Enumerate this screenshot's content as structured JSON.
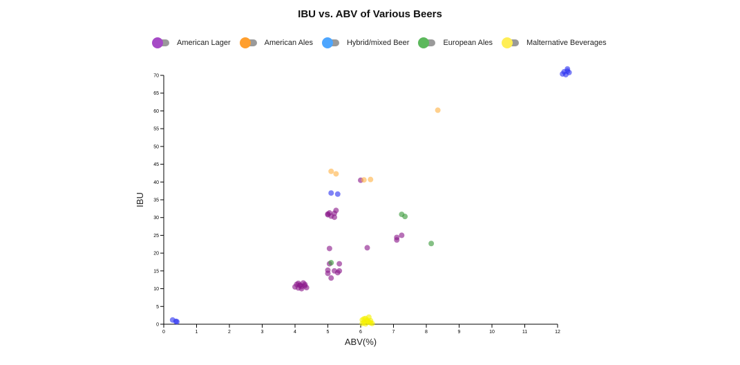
{
  "chart_data": {
    "type": "scatter",
    "title": "IBU vs. ABV of Various Beers",
    "xlabel": "ABV(%)",
    "ylabel": "IBU",
    "xlim": [
      0,
      12
    ],
    "ylim": [
      0,
      70
    ],
    "xticks": [
      0,
      1,
      2,
      3,
      4,
      5,
      6,
      7,
      8,
      9,
      10,
      11,
      12
    ],
    "yticks": [
      0,
      5,
      10,
      15,
      20,
      25,
      30,
      35,
      40,
      45,
      50,
      55,
      60,
      65,
      70
    ],
    "grid": false,
    "legend": "top",
    "series": [
      {
        "name": "American Lager",
        "color": "#a64ac6",
        "point_color": "#8b1a8b",
        "points": [
          [
            4.0,
            10.5
          ],
          [
            4.05,
            11.2
          ],
          [
            4.1,
            10.2
          ],
          [
            4.15,
            11.0
          ],
          [
            4.2,
            10.6
          ],
          [
            4.25,
            11.6
          ],
          [
            4.3,
            10.8
          ],
          [
            4.35,
            10.3
          ],
          [
            4.1,
            11.5
          ],
          [
            4.2,
            10.0
          ],
          [
            4.15,
            10.9
          ],
          [
            4.3,
            11.2
          ],
          [
            5.0,
            15.2
          ],
          [
            5.0,
            14.3
          ],
          [
            5.1,
            13.0
          ],
          [
            5.2,
            15.0
          ],
          [
            5.3,
            14.5
          ],
          [
            5.35,
            15.0
          ],
          [
            5.05,
            17.0
          ],
          [
            5.35,
            17.0
          ],
          [
            5.05,
            21.3
          ],
          [
            6.2,
            21.5
          ],
          [
            7.1,
            24.4
          ],
          [
            7.1,
            23.7
          ],
          [
            7.25,
            25.0
          ],
          [
            5.0,
            30.8
          ],
          [
            5.05,
            31.3
          ],
          [
            5.1,
            30.4
          ],
          [
            5.2,
            31.2
          ],
          [
            5.25,
            32.0
          ],
          [
            5.2,
            30.1
          ],
          [
            5.0,
            31.0
          ],
          [
            6.0,
            40.5
          ]
        ]
      },
      {
        "name": "American Ales",
        "color": "#ff9f2e",
        "point_color": "#ffb347",
        "points": [
          [
            5.1,
            43.0
          ],
          [
            5.25,
            42.3
          ],
          [
            6.1,
            40.6
          ],
          [
            6.3,
            40.7
          ],
          [
            8.35,
            60.2
          ]
        ]
      },
      {
        "name": "Hybrid/mixed Beer",
        "color": "#4da6ff",
        "point_color": "#2f35f0",
        "points": [
          [
            0.27,
            1.2
          ],
          [
            0.37,
            0.8
          ],
          [
            0.4,
            0.7
          ],
          [
            5.1,
            36.9
          ],
          [
            5.3,
            36.6
          ],
          [
            12.2,
            71.0
          ],
          [
            12.3,
            71.8
          ],
          [
            12.35,
            70.8
          ],
          [
            12.25,
            70.2
          ],
          [
            12.15,
            70.4
          ],
          [
            12.3,
            71.2
          ]
        ]
      },
      {
        "name": "European Ales",
        "color": "#5cb85c",
        "point_color": "#3a9a3a",
        "points": [
          [
            5.1,
            17.3
          ],
          [
            7.25,
            30.9
          ],
          [
            7.35,
            30.3
          ],
          [
            8.15,
            22.7
          ]
        ]
      },
      {
        "name": "Malternative Beverages",
        "color": "#ffee55",
        "point_color": "#f5f000",
        "points": [
          [
            6.05,
            1.2
          ],
          [
            6.1,
            0.5
          ],
          [
            6.15,
            1.6
          ],
          [
            6.2,
            0.8
          ],
          [
            6.25,
            2.0
          ],
          [
            6.3,
            0.4
          ],
          [
            6.05,
            0.2
          ],
          [
            6.15,
            0.1
          ],
          [
            6.2,
            1.1
          ],
          [
            6.3,
            1.0
          ],
          [
            6.1,
            1.5
          ],
          [
            6.25,
            0.6
          ],
          [
            6.35,
            0.2
          ]
        ]
      }
    ]
  }
}
